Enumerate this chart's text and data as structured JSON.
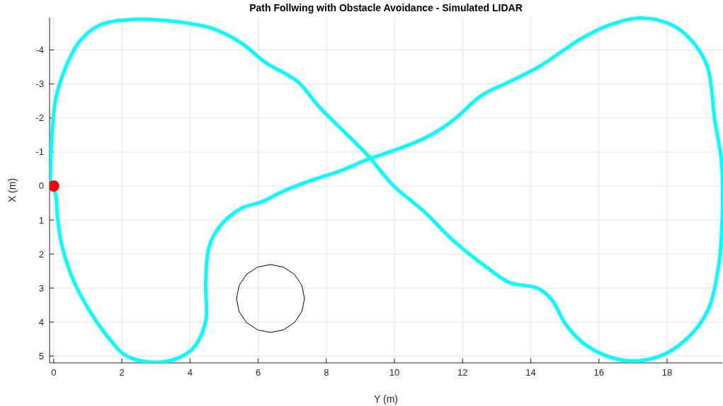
{
  "chart_data": {
    "type": "line",
    "title": "Path Follwing with Obstacle Avoidance - Simulated LIDAR",
    "xlabel": "Y (m)",
    "ylabel": "X (m)",
    "xlim": [
      -0.12,
      19.62
    ],
    "ylim": [
      5.2,
      -4.95
    ],
    "xticks": [
      0,
      2,
      4,
      6,
      8,
      10,
      12,
      14,
      16,
      18
    ],
    "yticks": [
      -4,
      -3,
      -2,
      -1,
      0,
      1,
      2,
      3,
      4,
      5
    ],
    "grid": true,
    "series": [
      {
        "color": "#00ffff",
        "x": [
          -0.1,
          -0.06,
          0.06,
          0.31,
          0.73,
          1.35,
          2.39,
          3.63,
          4.67,
          5.5,
          6.22,
          7.16,
          7.78,
          8.61,
          9.23,
          9.96,
          10.89,
          11.72,
          12.76,
          13.38,
          14.21,
          14.63,
          15.04,
          15.66,
          16.7,
          17.74,
          18.57,
          19.19,
          19.5,
          19.6,
          19.6,
          19.4,
          19.19,
          18.78,
          18.15,
          17.22,
          16.29,
          15.46,
          14.83,
          14.21,
          13.38,
          12.55,
          11.72,
          10.89,
          9.85,
          9.23,
          8.4,
          7.57,
          6.74,
          6.12,
          5.5,
          4.88,
          4.56,
          4.46,
          4.46,
          4.05,
          3.22,
          2.18,
          1.56,
          0.93,
          0.52,
          0.21,
          0.1,
          0.06,
          -0.04
        ],
        "values": [
          0,
          -1.31,
          -2.56,
          -3.38,
          -4.21,
          -4.73,
          -4.9,
          -4.83,
          -4.63,
          -4.21,
          -3.63,
          -3.07,
          -2.34,
          -1.51,
          -0.89,
          -0.02,
          0.77,
          1.6,
          2.43,
          2.84,
          3.01,
          3.36,
          4.09,
          4.71,
          5.12,
          5.02,
          4.5,
          3.67,
          2.43,
          1.39,
          -0.68,
          -1.93,
          -3.49,
          -4.21,
          -4.73,
          -4.94,
          -4.73,
          -4.32,
          -3.9,
          -3.49,
          -3.07,
          -2.66,
          -1.93,
          -1.41,
          -1.0,
          -0.79,
          -0.44,
          -0.17,
          0.15,
          0.46,
          0.66,
          1.18,
          1.8,
          2.84,
          3.98,
          4.81,
          5.17,
          5.02,
          4.4,
          3.46,
          2.63,
          1.6,
          0.77,
          0.25,
          0.04
        ]
      },
      {
        "type": "scatter",
        "color": "#ff0000",
        "marker": "circle",
        "x": [
          0
        ],
        "values": [
          0
        ]
      }
    ]
  }
}
